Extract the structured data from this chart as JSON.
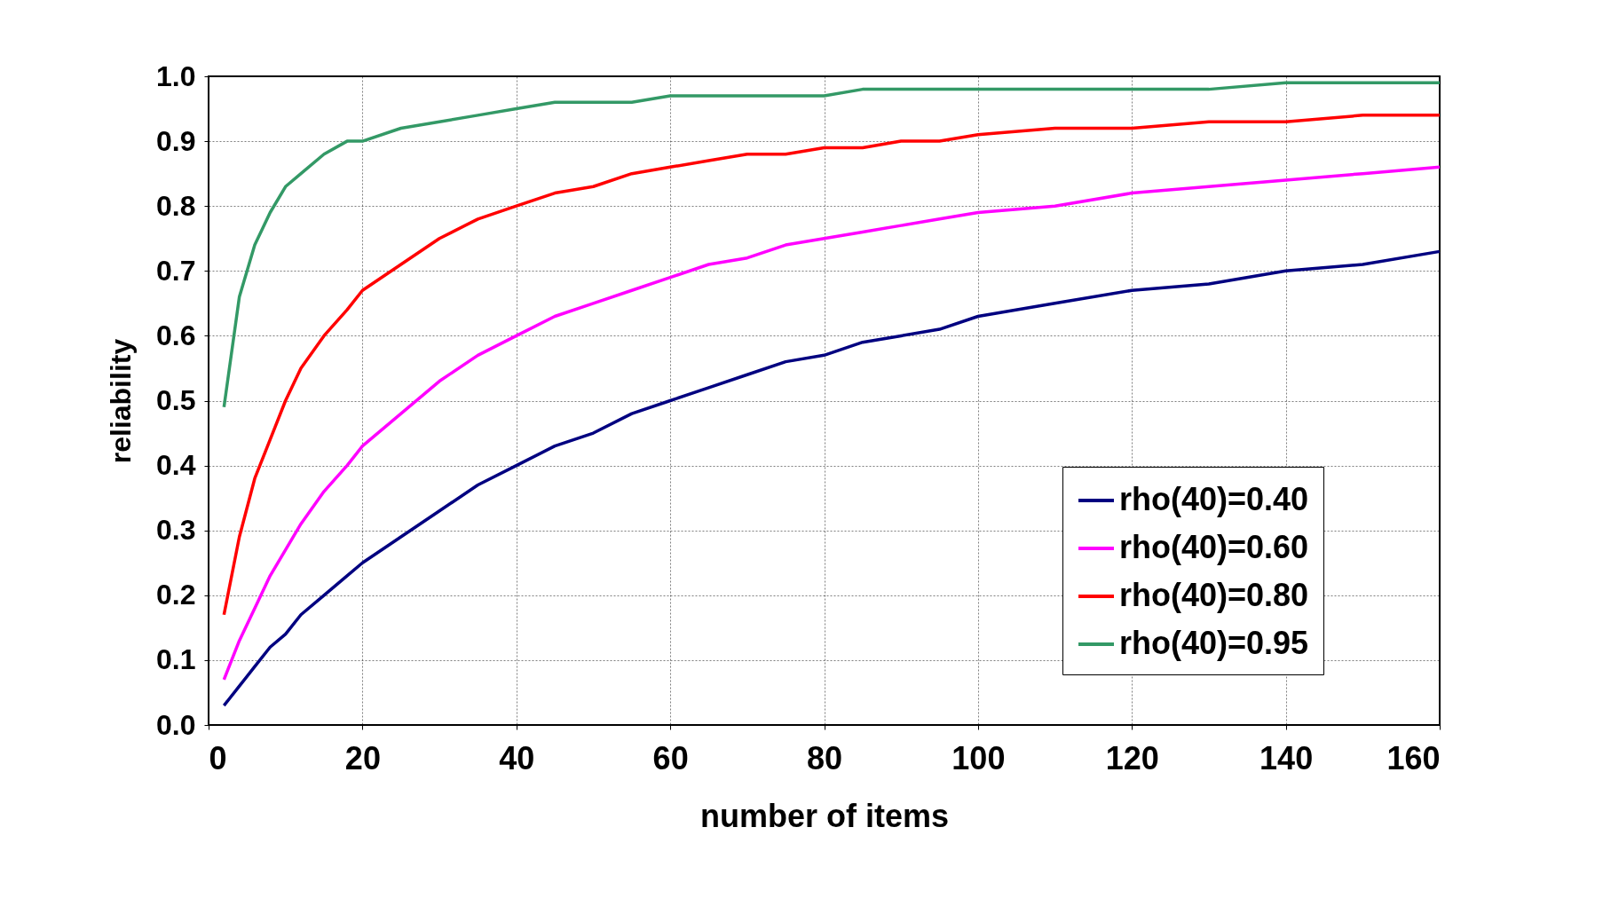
{
  "chart_data": {
    "type": "line",
    "xlabel": "number of items",
    "ylabel": "reliability",
    "x": [
      2,
      4,
      6,
      8,
      10,
      12,
      15,
      18,
      20,
      25,
      30,
      35,
      40,
      45,
      50,
      55,
      60,
      65,
      70,
      75,
      80,
      85,
      90,
      95,
      100,
      110,
      120,
      130,
      140,
      150,
      160
    ],
    "series": [
      {
        "name": "rho(40)=0.40",
        "color": "#000080",
        "values": [
          0.03,
          0.06,
          0.09,
          0.12,
          0.14,
          0.17,
          0.2,
          0.23,
          0.25,
          0.29,
          0.33,
          0.37,
          0.4,
          0.43,
          0.45,
          0.48,
          0.5,
          0.52,
          0.54,
          0.56,
          0.57,
          0.59,
          0.6,
          0.61,
          0.63,
          0.65,
          0.67,
          0.68,
          0.7,
          0.71,
          0.73
        ]
      },
      {
        "name": "rho(40)=0.60",
        "color": "#ff00ff",
        "values": [
          0.07,
          0.13,
          0.18,
          0.23,
          0.27,
          0.31,
          0.36,
          0.4,
          0.43,
          0.48,
          0.53,
          0.57,
          0.6,
          0.63,
          0.65,
          0.67,
          0.69,
          0.71,
          0.72,
          0.74,
          0.75,
          0.76,
          0.77,
          0.78,
          0.79,
          0.8,
          0.82,
          0.83,
          0.84,
          0.85,
          0.86
        ]
      },
      {
        "name": "rho(40)=0.80",
        "color": "#ff0000",
        "values": [
          0.17,
          0.29,
          0.38,
          0.44,
          0.5,
          0.55,
          0.6,
          0.64,
          0.67,
          0.71,
          0.75,
          0.78,
          0.8,
          0.82,
          0.83,
          0.85,
          0.86,
          0.87,
          0.88,
          0.88,
          0.89,
          0.89,
          0.9,
          0.9,
          0.91,
          0.92,
          0.92,
          0.93,
          0.93,
          0.94,
          0.94
        ]
      },
      {
        "name": "rho(40)=0.95",
        "color": "#339966",
        "values": [
          0.49,
          0.66,
          0.74,
          0.79,
          0.83,
          0.85,
          0.88,
          0.9,
          0.9,
          0.92,
          0.93,
          0.94,
          0.95,
          0.96,
          0.96,
          0.96,
          0.97,
          0.97,
          0.97,
          0.97,
          0.97,
          0.98,
          0.98,
          0.98,
          0.98,
          0.98,
          0.98,
          0.98,
          0.99,
          0.99,
          0.99
        ]
      }
    ],
    "xlim": [
      0,
      160
    ],
    "xticks": [
      0,
      20,
      40,
      60,
      80,
      100,
      120,
      140,
      160
    ],
    "ylim": [
      0,
      1.0
    ],
    "yticks": [
      {
        "value": 0,
        "label": "0.0"
      },
      {
        "value": 0.1,
        "label": "0.1"
      },
      {
        "value": 0.2,
        "label": "0.2"
      },
      {
        "value": 0.3,
        "label": "0.3"
      },
      {
        "value": 0.4,
        "label": "0.4"
      },
      {
        "value": 0.5,
        "label": "0.5"
      },
      {
        "value": 0.6,
        "label": "0.6"
      },
      {
        "value": 0.7,
        "label": "0.7"
      },
      {
        "value": 0.8,
        "label": "0.8"
      },
      {
        "value": 0.9,
        "label": "0.9"
      },
      {
        "value": 1.0,
        "label": "1.0"
      }
    ],
    "grid": true,
    "legend": "bottom right",
    "marker": "none",
    "line_style": "solid"
  }
}
